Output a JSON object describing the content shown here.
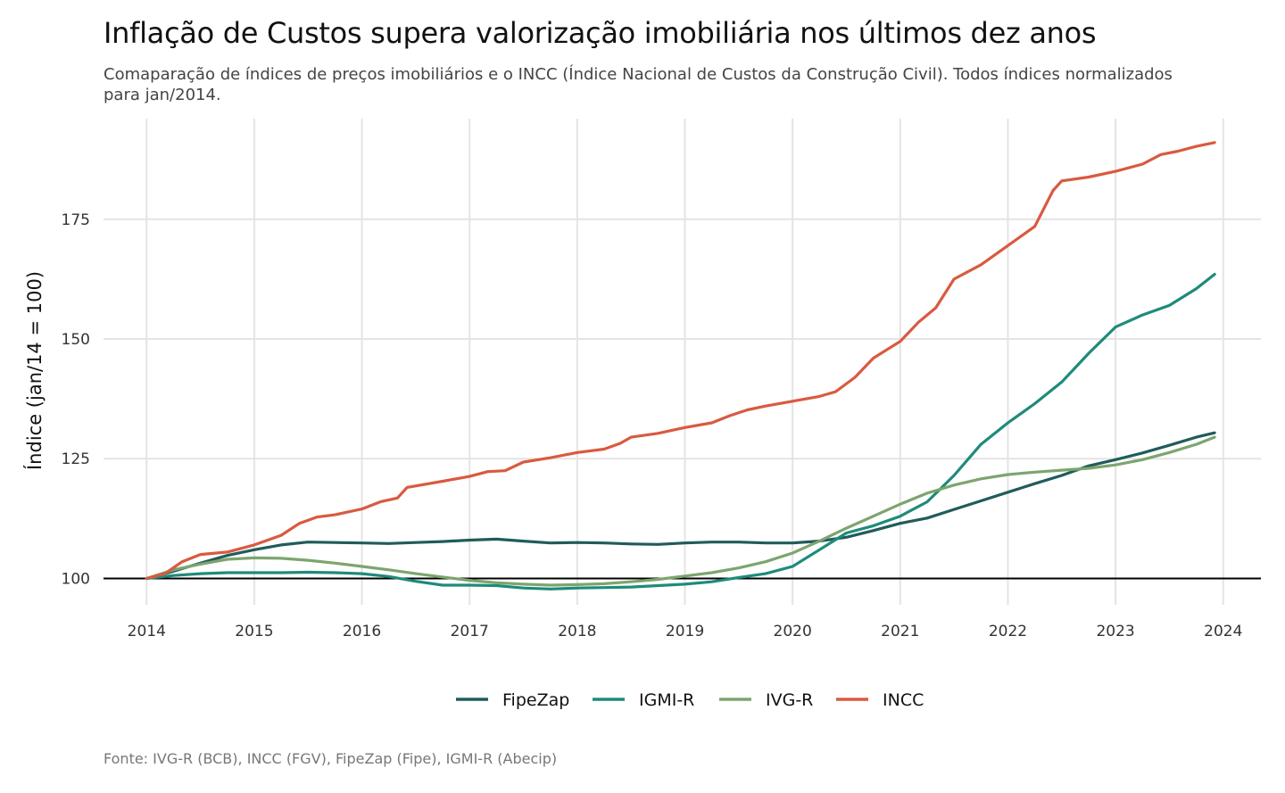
{
  "chart_data": {
    "type": "line",
    "title": "Inflação de Custos supera valorização imobiliária nos últimos dez anos",
    "subtitle": "Comaparação de índices de preços imobiliários e o INCC (Índice Nacional de Custos da Construção Civil). Todos índices normalizados para jan/2014.",
    "caption": "Fonte: IVG-R (BCB), INCC (FGV), FipeZap (Fipe), IGMI-R (Abecip)",
    "xlabel": "",
    "ylabel": "Índice (jan/14 = 100)",
    "xlim": [
      2013.6,
      2024.35
    ],
    "ylim": [
      94.5,
      196
    ],
    "x_ticks": [
      2014,
      2015,
      2016,
      2017,
      2018,
      2019,
      2020,
      2021,
      2022,
      2023,
      2024
    ],
    "y_ticks": [
      100,
      125,
      150,
      175
    ],
    "reference_line": 100,
    "grid": true,
    "legend_position": "bottom",
    "series": [
      {
        "name": "FipeZap",
        "color": "#1f5c5a",
        "points": [
          [
            2014.0,
            100
          ],
          [
            2014.25,
            101.5
          ],
          [
            2014.5,
            103.2
          ],
          [
            2014.75,
            104.8
          ],
          [
            2015.0,
            106.0
          ],
          [
            2015.25,
            107.0
          ],
          [
            2015.5,
            107.6
          ],
          [
            2015.75,
            107.5
          ],
          [
            2016.0,
            107.4
          ],
          [
            2016.25,
            107.3
          ],
          [
            2016.5,
            107.5
          ],
          [
            2016.75,
            107.7
          ],
          [
            2017.0,
            108.0
          ],
          [
            2017.25,
            108.2
          ],
          [
            2017.5,
            107.8
          ],
          [
            2017.75,
            107.4
          ],
          [
            2018.0,
            107.5
          ],
          [
            2018.25,
            107.4
          ],
          [
            2018.5,
            107.2
          ],
          [
            2018.75,
            107.1
          ],
          [
            2019.0,
            107.4
          ],
          [
            2019.25,
            107.6
          ],
          [
            2019.5,
            107.6
          ],
          [
            2019.75,
            107.4
          ],
          [
            2020.0,
            107.4
          ],
          [
            2020.25,
            107.8
          ],
          [
            2020.5,
            108.6
          ],
          [
            2020.75,
            110.0
          ],
          [
            2021.0,
            111.5
          ],
          [
            2021.25,
            112.6
          ],
          [
            2021.5,
            114.4
          ],
          [
            2021.75,
            116.2
          ],
          [
            2022.0,
            118.0
          ],
          [
            2022.25,
            119.8
          ],
          [
            2022.5,
            121.5
          ],
          [
            2022.75,
            123.5
          ],
          [
            2023.0,
            124.8
          ],
          [
            2023.25,
            126.2
          ],
          [
            2023.5,
            127.8
          ],
          [
            2023.75,
            129.5
          ],
          [
            2023.92,
            130.4
          ]
        ]
      },
      {
        "name": "IGMI-R",
        "color": "#1e8b7a",
        "points": [
          [
            2014.0,
            100
          ],
          [
            2014.25,
            100.6
          ],
          [
            2014.5,
            101.0
          ],
          [
            2014.75,
            101.2
          ],
          [
            2015.0,
            101.2
          ],
          [
            2015.25,
            101.2
          ],
          [
            2015.5,
            101.3
          ],
          [
            2015.75,
            101.2
          ],
          [
            2016.0,
            101.0
          ],
          [
            2016.25,
            100.4
          ],
          [
            2016.5,
            99.4
          ],
          [
            2016.75,
            98.6
          ],
          [
            2017.0,
            98.6
          ],
          [
            2017.25,
            98.5
          ],
          [
            2017.5,
            98.0
          ],
          [
            2017.75,
            97.8
          ],
          [
            2018.0,
            98.0
          ],
          [
            2018.25,
            98.1
          ],
          [
            2018.5,
            98.2
          ],
          [
            2018.75,
            98.5
          ],
          [
            2019.0,
            98.8
          ],
          [
            2019.25,
            99.3
          ],
          [
            2019.5,
            100.2
          ],
          [
            2019.75,
            101.0
          ],
          [
            2020.0,
            102.5
          ],
          [
            2020.25,
            106.0
          ],
          [
            2020.5,
            109.5
          ],
          [
            2020.75,
            111.0
          ],
          [
            2021.0,
            113.0
          ],
          [
            2021.25,
            116.0
          ],
          [
            2021.5,
            121.5
          ],
          [
            2021.75,
            128.0
          ],
          [
            2022.0,
            132.5
          ],
          [
            2022.25,
            136.5
          ],
          [
            2022.5,
            141.0
          ],
          [
            2022.75,
            147.0
          ],
          [
            2023.0,
            152.5
          ],
          [
            2023.25,
            155.0
          ],
          [
            2023.5,
            157.0
          ],
          [
            2023.75,
            160.5
          ],
          [
            2023.92,
            163.5
          ]
        ]
      },
      {
        "name": "IVG-R",
        "color": "#7ca56e",
        "points": [
          [
            2014.0,
            100
          ],
          [
            2014.25,
            101.8
          ],
          [
            2014.5,
            103.0
          ],
          [
            2014.75,
            104.0
          ],
          [
            2015.0,
            104.3
          ],
          [
            2015.25,
            104.2
          ],
          [
            2015.5,
            103.8
          ],
          [
            2015.75,
            103.2
          ],
          [
            2016.0,
            102.5
          ],
          [
            2016.25,
            101.8
          ],
          [
            2016.5,
            101.0
          ],
          [
            2016.75,
            100.3
          ],
          [
            2017.0,
            99.6
          ],
          [
            2017.25,
            99.1
          ],
          [
            2017.5,
            98.8
          ],
          [
            2017.75,
            98.6
          ],
          [
            2018.0,
            98.7
          ],
          [
            2018.25,
            98.9
          ],
          [
            2018.5,
            99.3
          ],
          [
            2018.75,
            99.8
          ],
          [
            2019.0,
            100.5
          ],
          [
            2019.25,
            101.2
          ],
          [
            2019.5,
            102.2
          ],
          [
            2019.75,
            103.5
          ],
          [
            2020.0,
            105.3
          ],
          [
            2020.25,
            107.8
          ],
          [
            2020.5,
            110.5
          ],
          [
            2020.75,
            113.0
          ],
          [
            2021.0,
            115.5
          ],
          [
            2021.25,
            117.8
          ],
          [
            2021.5,
            119.5
          ],
          [
            2021.75,
            120.8
          ],
          [
            2022.0,
            121.7
          ],
          [
            2022.25,
            122.2
          ],
          [
            2022.5,
            122.6
          ],
          [
            2022.75,
            123.0
          ],
          [
            2023.0,
            123.7
          ],
          [
            2023.25,
            124.8
          ],
          [
            2023.5,
            126.3
          ],
          [
            2023.75,
            128.0
          ],
          [
            2023.92,
            129.5
          ]
        ]
      },
      {
        "name": "INCC",
        "color": "#d95a40",
        "points": [
          [
            2014.0,
            100
          ],
          [
            2014.17,
            101.0
          ],
          [
            2014.33,
            103.5
          ],
          [
            2014.5,
            105.0
          ],
          [
            2014.75,
            105.5
          ],
          [
            2015.0,
            107.0
          ],
          [
            2015.25,
            109.0
          ],
          [
            2015.42,
            111.5
          ],
          [
            2015.58,
            112.8
          ],
          [
            2015.75,
            113.3
          ],
          [
            2016.0,
            114.5
          ],
          [
            2016.17,
            116.0
          ],
          [
            2016.33,
            116.8
          ],
          [
            2016.42,
            119.0
          ],
          [
            2016.75,
            120.3
          ],
          [
            2017.0,
            121.3
          ],
          [
            2017.17,
            122.3
          ],
          [
            2017.33,
            122.5
          ],
          [
            2017.5,
            124.3
          ],
          [
            2017.75,
            125.2
          ],
          [
            2018.0,
            126.3
          ],
          [
            2018.25,
            127.0
          ],
          [
            2018.4,
            128.2
          ],
          [
            2018.5,
            129.5
          ],
          [
            2018.75,
            130.3
          ],
          [
            2019.0,
            131.5
          ],
          [
            2019.25,
            132.5
          ],
          [
            2019.42,
            134.0
          ],
          [
            2019.58,
            135.2
          ],
          [
            2019.75,
            136.0
          ],
          [
            2020.0,
            137.0
          ],
          [
            2020.25,
            138.0
          ],
          [
            2020.4,
            139.0
          ],
          [
            2020.58,
            142.0
          ],
          [
            2020.75,
            146.0
          ],
          [
            2021.0,
            149.5
          ],
          [
            2021.17,
            153.5
          ],
          [
            2021.33,
            156.5
          ],
          [
            2021.5,
            162.5
          ],
          [
            2021.75,
            165.5
          ],
          [
            2022.0,
            169.5
          ],
          [
            2022.25,
            173.5
          ],
          [
            2022.42,
            181.0
          ],
          [
            2022.5,
            183.0
          ],
          [
            2022.75,
            183.8
          ],
          [
            2023.0,
            185.0
          ],
          [
            2023.25,
            186.5
          ],
          [
            2023.42,
            188.5
          ],
          [
            2023.58,
            189.2
          ],
          [
            2023.75,
            190.2
          ],
          [
            2023.92,
            191.0
          ]
        ]
      }
    ]
  }
}
